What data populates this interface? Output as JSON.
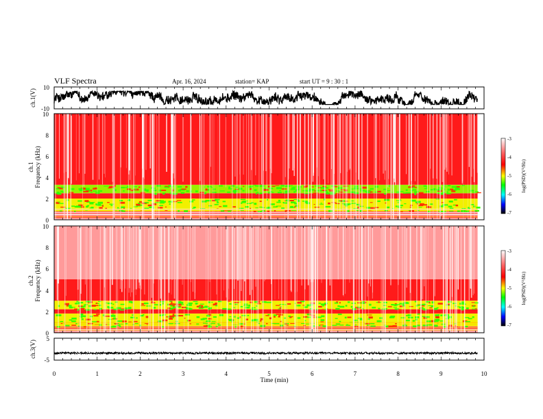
{
  "header": {
    "title": "VLF Spectra",
    "date": "Apr. 16, 2024",
    "station": "station= KAP",
    "start": "start  UT  =   9 : 30 : 1"
  },
  "colors": {
    "spectrogram_palette": [
      "#ffffff",
      "#ff0000",
      "#ffff00",
      "#00ff00",
      "#00ffff",
      "#0000ff",
      "#000000"
    ],
    "trace": "#000000"
  },
  "chart_data": [
    {
      "type": "line",
      "panel": "ch1-waveform",
      "ylabel": "ch.1(V)",
      "ylim": [
        -10,
        10
      ],
      "yticks": [
        "10",
        "-10"
      ],
      "xlim": [
        0,
        10
      ],
      "description_values": {
        "mean": 0,
        "amplitude_range": [
          -6,
          6
        ]
      }
    },
    {
      "type": "heatmap",
      "panel": "ch1-spectrogram",
      "ylabel_1": "ch.1",
      "ylabel_2": "Frequency (kHz)",
      "ylim": [
        0,
        10
      ],
      "yticks": [
        "0",
        "2",
        "4",
        "6",
        "8",
        "10"
      ],
      "xlim": [
        0,
        10
      ],
      "data_end_min": 9.85,
      "bands": [
        {
          "f_low": 0.0,
          "f_high": 0.8,
          "color": "mixed red/white lines"
        },
        {
          "f_low": 0.8,
          "f_high": 2.0,
          "color": "yellow-green"
        },
        {
          "f_low": 2.0,
          "f_high": 2.5,
          "color": "red"
        },
        {
          "f_low": 2.5,
          "f_high": 3.3,
          "color": "green-yellow"
        },
        {
          "f_low": 3.3,
          "f_high": 10.0,
          "color": "red"
        }
      ],
      "colorbar": {
        "label": "log(PSD)(V²/Hz)",
        "ticks": [
          "-3",
          "-4",
          "-5",
          "-6",
          "-7"
        ],
        "range": [
          -7,
          -3
        ]
      }
    },
    {
      "type": "heatmap",
      "panel": "ch2-spectrogram",
      "ylabel_1": "ch.2",
      "ylabel_2": "Frequency (kHz)",
      "ylim": [
        0,
        10
      ],
      "yticks": [
        "0",
        "2",
        "4",
        "6",
        "8",
        "10"
      ],
      "xlim": [
        0,
        10
      ],
      "data_end_min": 9.85,
      "bands": [
        {
          "f_low": 0.0,
          "f_high": 0.6,
          "color": "mixed red/white lines"
        },
        {
          "f_low": 0.6,
          "f_high": 1.8,
          "color": "yellow-green"
        },
        {
          "f_low": 1.8,
          "f_high": 2.2,
          "color": "red"
        },
        {
          "f_low": 2.2,
          "f_high": 3.0,
          "color": "yellow-green"
        },
        {
          "f_low": 3.0,
          "f_high": 5.0,
          "color": "red"
        },
        {
          "f_low": 5.0,
          "f_high": 10.0,
          "color": "light red / white"
        }
      ],
      "colorbar": {
        "label": "log(PSD)(V²/Hz)",
        "ticks": [
          "-3",
          "-4",
          "-5",
          "-6",
          "-7"
        ],
        "range": [
          -7,
          -3
        ]
      }
    },
    {
      "type": "line",
      "panel": "ch3-waveform",
      "ylabel": "ch.3(V)",
      "ylim": [
        -5,
        5
      ],
      "yticks": [
        "5",
        "-5"
      ],
      "xlim": [
        0,
        10
      ],
      "description_values": {
        "mean": -1.8,
        "amplitude_range": [
          -2.3,
          -1.3
        ]
      }
    }
  ],
  "xaxis": {
    "label": "Time (min)",
    "ticks": [
      "0",
      "1",
      "2",
      "3",
      "4",
      "5",
      "6",
      "7",
      "8",
      "9",
      "10"
    ]
  }
}
